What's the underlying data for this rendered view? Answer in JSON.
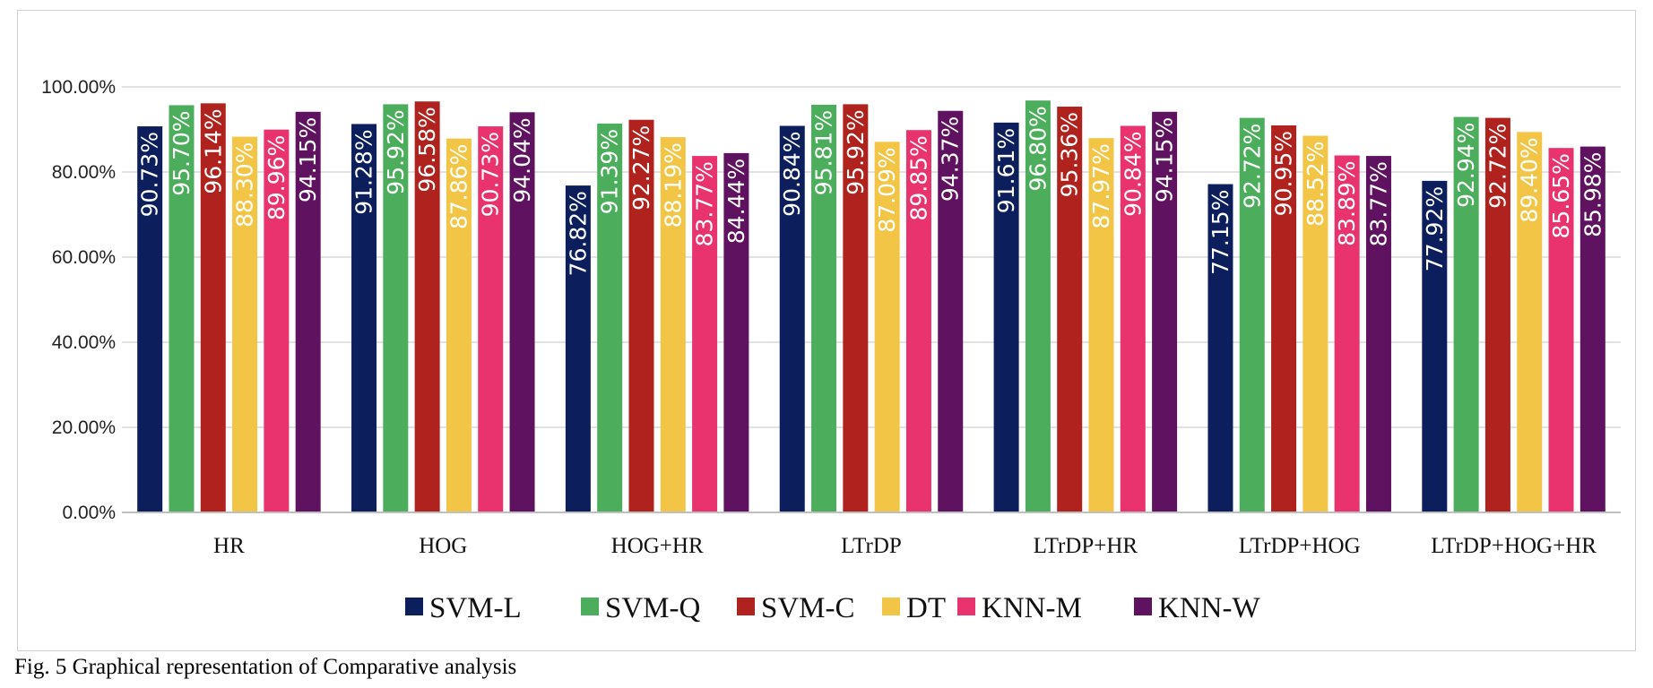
{
  "caption": "Fig. 5 Graphical representation of Comparative analysis",
  "chart_data": {
    "type": "bar",
    "categories": [
      "HR",
      "HOG",
      "HOG+HR",
      "LTrDP",
      "LTrDP+HR",
      "LTrDP+HOG",
      "LTrDP+HOG+HR"
    ],
    "series": [
      {
        "name": "SVM-L",
        "color": "#0c1e5b",
        "values": [
          90.73,
          91.28,
          76.82,
          90.84,
          91.61,
          77.15,
          77.92
        ],
        "labels": [
          "90.73%",
          "91.28%",
          "76.82%",
          "90.84%",
          "91.61%",
          "77.15%",
          "77.92%"
        ]
      },
      {
        "name": "SVM-Q",
        "color": "#4cae5c",
        "values": [
          95.7,
          95.92,
          91.39,
          95.81,
          96.8,
          92.72,
          92.94
        ],
        "labels": [
          "95.70%",
          "95.92%",
          "91.39%",
          "95.81%",
          "96.80%",
          "92.72%",
          "92.94%"
        ]
      },
      {
        "name": "SVM-C",
        "color": "#b0221e",
        "values": [
          96.14,
          96.58,
          92.27,
          95.92,
          95.36,
          90.95,
          92.72
        ],
        "labels": [
          "96.14%",
          "96.58%",
          "92.27%",
          "95.92%",
          "95.36%",
          "90.95%",
          "92.72%"
        ]
      },
      {
        "name": "DT",
        "color": "#f2c546",
        "values": [
          88.3,
          87.86,
          88.19,
          87.09,
          87.97,
          88.52,
          89.4
        ],
        "labels": [
          "88.30%",
          "87.86%",
          "88.19%",
          "87.09%",
          "87.97%",
          "88.52%",
          "89.40%"
        ]
      },
      {
        "name": "KNN-M",
        "color": "#e8336e",
        "values": [
          89.96,
          90.73,
          83.77,
          89.85,
          90.84,
          83.89,
          85.65
        ],
        "labels": [
          "89.96%",
          "90.73%",
          "83.77%",
          "89.85%",
          "90.84%",
          "83.89%",
          "85.65%"
        ]
      },
      {
        "name": "KNN-W",
        "color": "#5e1260",
        "values": [
          94.15,
          94.04,
          84.44,
          94.37,
          94.15,
          83.77,
          85.98
        ],
        "labels": [
          "94.15%",
          "94.04%",
          "84.44%",
          "94.37%",
          "94.15%",
          "83.77%",
          "85.98%"
        ]
      }
    ],
    "ylim": [
      0,
      100
    ],
    "yticks": [
      0,
      20,
      40,
      60,
      80,
      100
    ],
    "ytick_labels": [
      "0.00%",
      "20.00%",
      "40.00%",
      "60.00%",
      "80.00%",
      "100.00%"
    ],
    "grid": true,
    "legend_position": "bottom",
    "title": "",
    "xlabel": "",
    "ylabel": ""
  }
}
